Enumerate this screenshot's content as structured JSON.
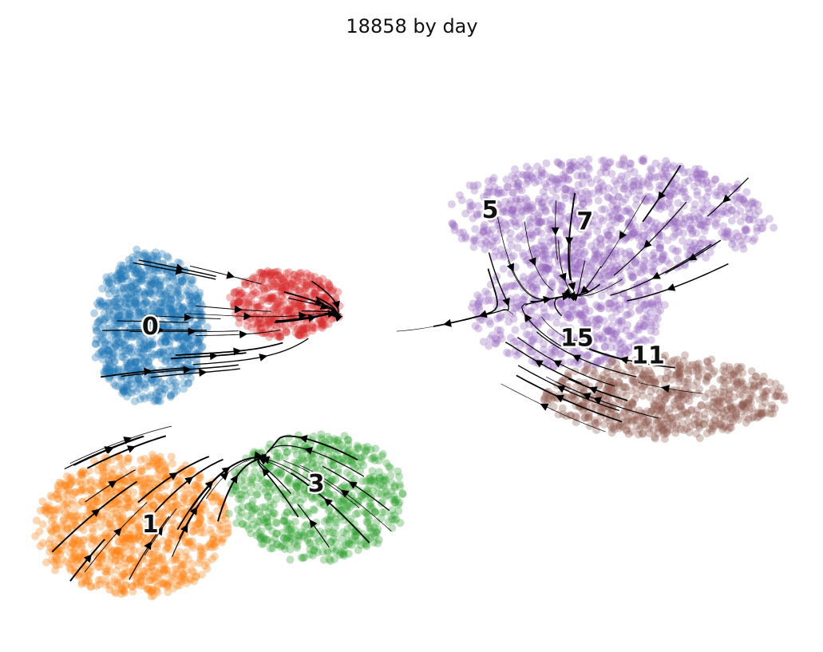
{
  "chart_data": {
    "type": "scatter",
    "title": "18858 by day",
    "xlabel": "",
    "ylabel": "",
    "axes_visible": false,
    "grid": false,
    "legend": "on data",
    "overlay": "velocity streamlines with arrowheads",
    "clusters": [
      {
        "name": "0",
        "color": "#1f77b4",
        "center": [
          0.17,
          0.52
        ],
        "spread": [
          0.07,
          0.13
        ],
        "n": 900
      },
      {
        "name": "1",
        "color": "#ff7f0e",
        "center": [
          0.15,
          0.18
        ],
        "spread": [
          0.12,
          0.12
        ],
        "n": 1000
      },
      {
        "name": "3",
        "color": "#2ca02c",
        "center": [
          0.38,
          0.23
        ],
        "spread": [
          0.11,
          0.11
        ],
        "n": 650
      },
      {
        "name": "5",
        "color": "#d62728",
        "center": [
          0.34,
          0.56
        ],
        "spread": [
          0.07,
          0.06
        ],
        "n": 420
      },
      {
        "name": "7",
        "color": "#9467bd",
        "center": [
          0.75,
          0.71
        ],
        "spread": [
          0.2,
          0.1
        ],
        "n": 900
      },
      {
        "name": "15",
        "color": "#9467bd",
        "center": [
          0.7,
          0.55
        ],
        "spread": [
          0.12,
          0.1
        ],
        "n": 500
      },
      {
        "name": "11",
        "color": "#8c564b",
        "center": [
          0.82,
          0.4
        ],
        "spread": [
          0.15,
          0.07
        ],
        "n": 650
      }
    ],
    "label_positions": [
      {
        "name": "0",
        "x": 0.17,
        "y": 0.52
      },
      {
        "name": "1",
        "x": 0.17,
        "y": 0.18
      },
      {
        "name": "3",
        "x": 0.38,
        "y": 0.25
      },
      {
        "name": "5",
        "x": 0.6,
        "y": 0.72
      },
      {
        "name": "7",
        "x": 0.72,
        "y": 0.7
      },
      {
        "name": "15",
        "x": 0.71,
        "y": 0.5
      },
      {
        "name": "11",
        "x": 0.8,
        "y": 0.47
      }
    ]
  }
}
